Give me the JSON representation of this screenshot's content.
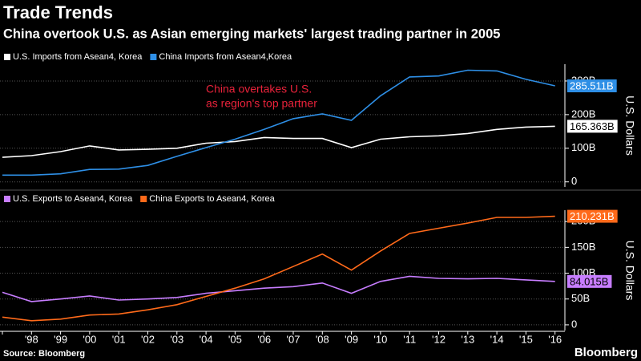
{
  "title": "Trade Trends",
  "subtitle": "China overtook U.S. as Asian emerging markets' largest trading partner in 2005",
  "source": "Source: Bloomberg",
  "logo": "Bloomberg",
  "chart_data": [
    {
      "type": "line",
      "y_label": "U.S. Dollars",
      "annotation": [
        "China overtakes U.S.",
        "as region's top partner"
      ],
      "annotation_color": "#e8223a",
      "ylim": [
        -15,
        350
      ],
      "yticks": [
        0,
        {
          "value": 100,
          "label": "100B"
        },
        {
          "value": 200,
          "label": "200B"
        },
        {
          "value": 300,
          "label": "300B"
        }
      ],
      "grid": true,
      "series": [
        {
          "name": "U.S. Imports from Asean4, Korea",
          "color": "#ffffff",
          "values": [
            73,
            78,
            90,
            107,
            95,
            97,
            100,
            115,
            120,
            132,
            129,
            129,
            102,
            127,
            134,
            137,
            144,
            156,
            163,
            165.363
          ],
          "value_labels": [
            null,
            null,
            null,
            null,
            null,
            null,
            null,
            null,
            null,
            null,
            null,
            null,
            null,
            null,
            null,
            null,
            null,
            null,
            null,
            "165.363B"
          ]
        },
        {
          "name": "China Imports from Asean4,Korea",
          "color": "#2e8fe6",
          "values": [
            20,
            20,
            24,
            37,
            38,
            49,
            76,
            102,
            127,
            156,
            188,
            202,
            183,
            256,
            312,
            315,
            332,
            330,
            305,
            285.511
          ],
          "value_labels": [
            null,
            null,
            null,
            null,
            null,
            null,
            null,
            null,
            null,
            null,
            null,
            null,
            null,
            null,
            null,
            null,
            null,
            null,
            null,
            "285.511B"
          ]
        }
      ]
    },
    {
      "type": "line",
      "y_label": "U.S. Dollars",
      "categories": [
        null,
        "'98",
        "'99",
        "'00",
        "'01",
        "'02",
        "'03",
        "'04",
        "'05",
        "'06",
        "'07",
        "'08",
        "'09",
        "'10",
        "'11",
        "'12",
        "'13",
        "'14",
        "'15",
        "'16"
      ],
      "ylim": [
        -11,
        222
      ],
      "yticks": [
        0,
        {
          "value": 50,
          "label": "50B"
        },
        {
          "value": 100,
          "label": "100B"
        },
        {
          "value": 150,
          "label": "150B"
        },
        {
          "value": 200,
          "label": "200B"
        }
      ],
      "grid": true,
      "series": [
        {
          "name": "U.S. Exports to Asean4, Korea",
          "color": "#c77dff",
          "values": [
            63,
            45,
            50,
            56,
            48,
            50,
            53,
            61,
            66,
            71,
            74,
            81,
            61,
            84,
            94,
            90,
            89,
            90,
            87,
            84.015
          ],
          "value_labels": [
            null,
            null,
            null,
            null,
            null,
            null,
            null,
            null,
            null,
            null,
            null,
            null,
            null,
            null,
            null,
            null,
            null,
            null,
            null,
            "84.015B"
          ]
        },
        {
          "name": "China Exports to Asean4, Korea",
          "color": "#ff6a1a",
          "values": [
            15,
            8,
            11,
            19,
            21,
            29,
            39,
            55,
            71,
            89,
            113,
            137,
            106,
            143,
            177,
            187,
            197,
            208,
            208,
            210.231
          ],
          "value_labels": [
            null,
            null,
            null,
            null,
            null,
            null,
            null,
            null,
            null,
            null,
            null,
            null,
            null,
            null,
            null,
            null,
            null,
            null,
            null,
            "210.231B"
          ]
        }
      ]
    }
  ]
}
